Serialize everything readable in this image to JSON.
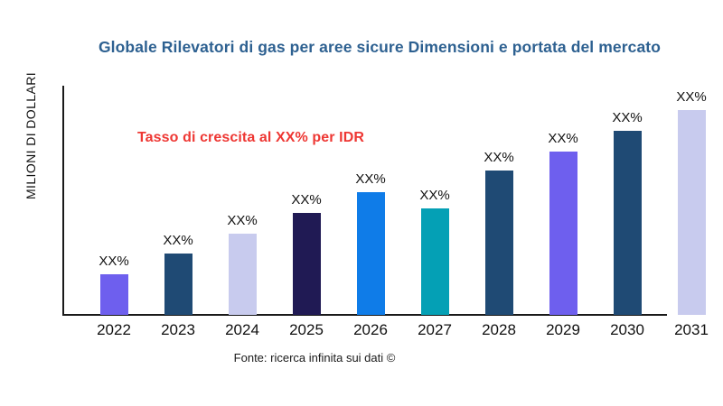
{
  "header": {
    "title": "Globale Rilevatori di gas per aree sicure Dimensioni e portata del mercato",
    "title_color": "#2e6191"
  },
  "annotation": {
    "text": "Tasso di crescita al XX% per IDR",
    "color": "#ee3733"
  },
  "footer": {
    "text": "Fonte: ricerca infinita sui dati ©"
  },
  "chart_data": {
    "type": "bar",
    "title": "Globale Rilevatori di gas per aree sicure Dimensioni e portata del mercato",
    "xlabel": "",
    "ylabel": "MILIONI DI DOLLARI",
    "categories": [
      "2022",
      "2023",
      "2024",
      "2025",
      "2026",
      "2027",
      "2028",
      "2029",
      "2030",
      "2031"
    ],
    "values": [
      45,
      68,
      90,
      113,
      136,
      118,
      160,
      181,
      204,
      227
    ],
    "values_unit": "relative-size-estimate-px",
    "bar_labels": [
      "XX%",
      "XX%",
      "XX%",
      "XX%",
      "XX%",
      "XX%",
      "XX%",
      "XX%",
      "XX%",
      "XX%"
    ],
    "bar_colors": [
      "#6e5fee",
      "#1f4a74",
      "#c8cbee",
      "#201a54",
      "#0f7ce8",
      "#04a0b5",
      "#1f4a74",
      "#6e5fee",
      "#1f4a74",
      "#c8cbee"
    ],
    "annotation": "Tasso di crescita al XX% per IDR",
    "source": "Fonte: ricerca infinita sui dati ©",
    "axis_color": "#1a1a1a",
    "grid": false,
    "legend": "none"
  }
}
